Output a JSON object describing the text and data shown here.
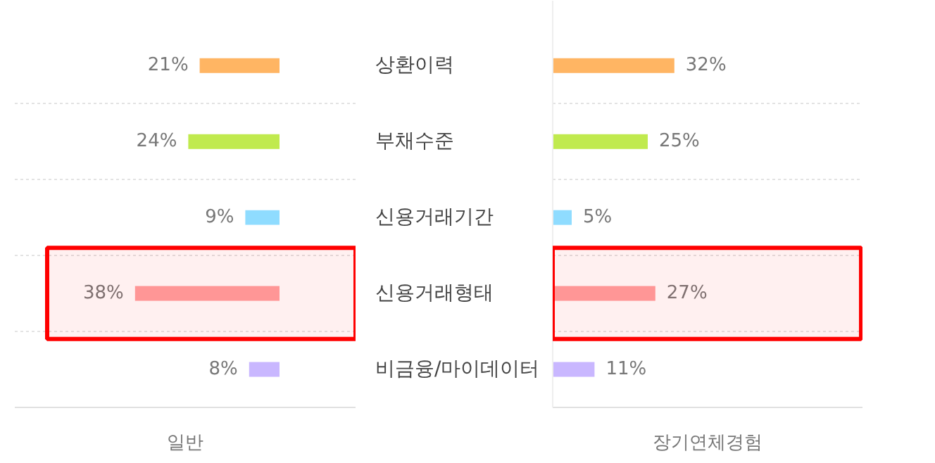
{
  "chart_data": [
    {
      "type": "bar",
      "orientation": "horizontal",
      "xlabel": "일반",
      "categories": [
        "상환이력",
        "부채수준",
        "신용거래기간",
        "신용거래형태",
        "비금융/마이데이터"
      ],
      "colors": [
        "#ffb563",
        "#c0ea4e",
        "#8fdcff",
        "#ffa0a0",
        "#c9b7ff"
      ],
      "values": [
        21,
        24,
        9,
        38,
        8
      ],
      "value_labels": [
        "21%",
        "24%",
        "9%",
        "38%",
        "8%"
      ],
      "grid": true,
      "tick_labels": "y",
      "bands": [
        {
          "axis": "y",
          "from": "신용거래형태",
          "to": "신용거래형태",
          "color": "#ff0000"
        }
      ]
    },
    {
      "type": "bar",
      "orientation": "horizontal",
      "xlabel": "장기연체경험",
      "categories": [
        "상환이력",
        "부채수준",
        "신용거래기간",
        "신용거래형태",
        "비금융/마이데이터"
      ],
      "colors": [
        "#ffb563",
        "#c0ea4e",
        "#8fdcff",
        "#ffa0a0",
        "#c9b7ff"
      ],
      "values": [
        32,
        25,
        5,
        27,
        11
      ],
      "value_labels": [
        "32%",
        "25%",
        "5%",
        "27%",
        "11%"
      ],
      "grid": true,
      "tick_labels": false,
      "bands": [
        {
          "axis": "y",
          "from": "신용거래형태",
          "to": "신용거래형태",
          "color": "#ff0000"
        }
      ]
    }
  ]
}
